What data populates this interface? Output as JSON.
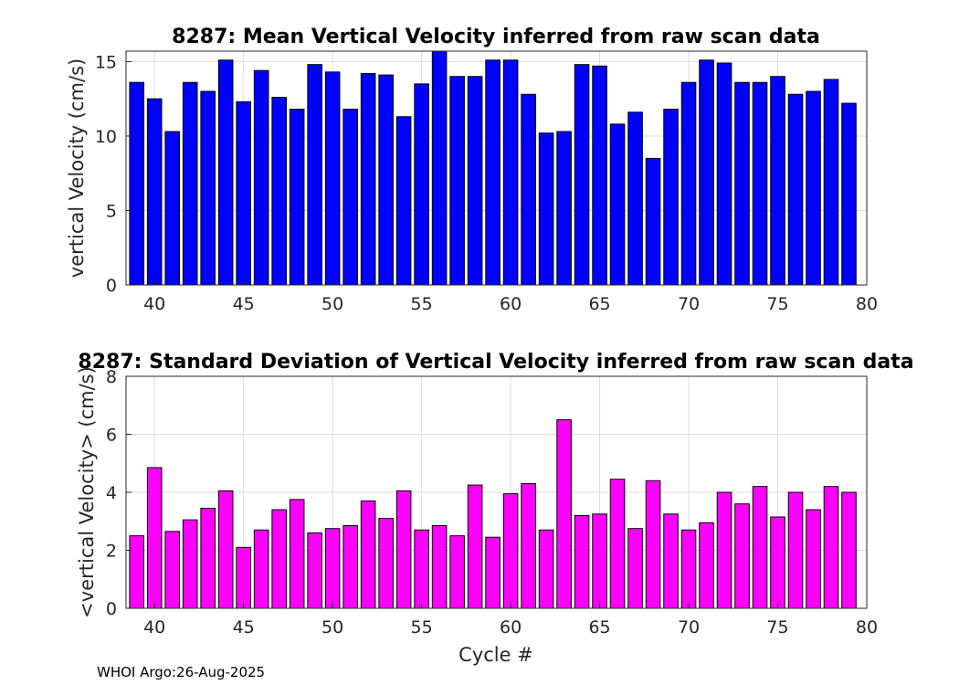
{
  "chart_data": [
    {
      "type": "bar",
      "title": "8287: Mean Vertical Velocity inferred from raw scan data",
      "xlabel": "",
      "ylabel": "vertical Velocity (cm/s)",
      "xlim": [
        38.4,
        80
      ],
      "ylim": [
        0,
        15.7
      ],
      "xticks": [
        40,
        45,
        50,
        55,
        60,
        65,
        70,
        75,
        80
      ],
      "yticks": [
        0,
        5,
        10,
        15
      ],
      "color": "#0000ff",
      "x": [
        39,
        40,
        41,
        42,
        43,
        44,
        45,
        46,
        47,
        48,
        49,
        50,
        51,
        52,
        53,
        54,
        55,
        56,
        57,
        58,
        59,
        60,
        61,
        62,
        63,
        64,
        65,
        66,
        67,
        68,
        69,
        70,
        71,
        72,
        73,
        74,
        75,
        76,
        77,
        78,
        79
      ],
      "values": [
        13.6,
        12.5,
        10.3,
        13.6,
        13.0,
        15.1,
        12.3,
        14.4,
        12.6,
        11.8,
        14.8,
        14.3,
        11.8,
        14.2,
        14.1,
        11.3,
        13.5,
        15.7,
        14.0,
        14.0,
        15.1,
        15.1,
        12.8,
        10.2,
        10.3,
        14.8,
        14.7,
        10.8,
        11.6,
        8.5,
        11.8,
        13.6,
        15.1,
        14.9,
        13.6,
        13.6,
        14.0,
        12.8,
        13.0,
        13.8,
        12.2
      ]
    },
    {
      "type": "bar",
      "title": "8287: Standard Deviation of Vertical Velocity inferred from raw scan data",
      "xlabel": "Cycle #",
      "ylabel": "<vertical Velocity> (cm/s)",
      "xlim": [
        38.4,
        80
      ],
      "ylim": [
        0,
        8
      ],
      "xticks": [
        40,
        45,
        50,
        55,
        60,
        65,
        70,
        75,
        80
      ],
      "yticks": [
        0,
        2,
        4,
        6,
        8
      ],
      "color": "#ff00ff",
      "x": [
        39,
        40,
        41,
        42,
        43,
        44,
        45,
        46,
        47,
        48,
        49,
        50,
        51,
        52,
        53,
        54,
        55,
        56,
        57,
        58,
        59,
        60,
        61,
        62,
        63,
        64,
        65,
        66,
        67,
        68,
        69,
        70,
        71,
        72,
        73,
        74,
        75,
        76,
        77,
        78,
        79
      ],
      "values": [
        2.5,
        4.85,
        2.65,
        3.05,
        3.45,
        4.05,
        2.1,
        2.7,
        3.4,
        3.75,
        2.6,
        2.75,
        2.85,
        3.7,
        3.1,
        4.05,
        2.7,
        2.85,
        2.5,
        4.25,
        2.45,
        3.95,
        4.3,
        2.7,
        6.5,
        3.2,
        3.25,
        4.45,
        2.75,
        4.4,
        3.25,
        2.7,
        2.95,
        4.0,
        3.6,
        4.2,
        3.15,
        4.0,
        3.4,
        4.2,
        4.0
      ]
    }
  ],
  "footer": {
    "text": "WHOI Argo:26-Aug-2025"
  }
}
